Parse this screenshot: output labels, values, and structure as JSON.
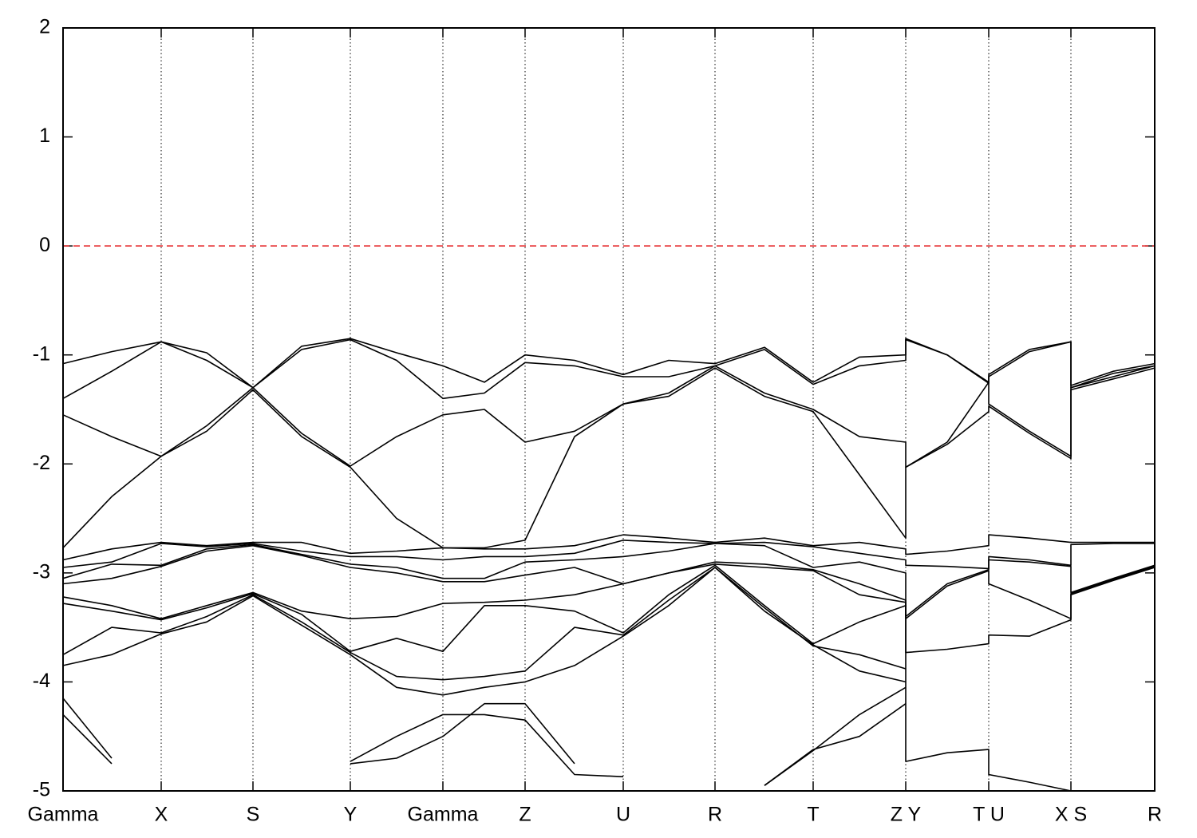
{
  "chart_data": {
    "type": "line",
    "color": "#000000",
    "grid": true,
    "x": [
      0,
      61,
      123,
      180,
      238,
      299,
      360,
      418,
      476,
      528,
      579,
      641,
      702,
      759,
      817,
      879,
      940,
      998,
      1056,
      1056,
      1108,
      1160,
      1160,
      1211,
      1263,
      1263,
      1316,
      1368
    ],
    "xlim": [
      0,
      1368
    ],
    "xticks": [
      {
        "value": 0,
        "label": "Gamma"
      },
      {
        "value": 123,
        "label": "X"
      },
      {
        "value": 238,
        "label": "S"
      },
      {
        "value": 360,
        "label": "Y"
      },
      {
        "value": 476,
        "label": "Gamma"
      },
      {
        "value": 579,
        "label": "Z"
      },
      {
        "value": 702,
        "label": "U"
      },
      {
        "value": 817,
        "label": "R"
      },
      {
        "value": 940,
        "label": "T"
      },
      {
        "value": 1056,
        "label": "Z Y"
      },
      {
        "value": 1160,
        "label": "T U"
      },
      {
        "value": 1263,
        "label": "X S"
      },
      {
        "value": 1368,
        "label": "R"
      }
    ],
    "ylim": [
      -5,
      2
    ],
    "yticks": [
      -5,
      -4,
      -3,
      -2,
      -1,
      0,
      1,
      2
    ],
    "reference_line": {
      "value": 0,
      "color": "#e41a1c",
      "dash": true
    },
    "series": [
      {
        "values": [
          -1.08,
          -0.97,
          -0.88,
          -0.98,
          -1.3,
          -0.92,
          -0.85,
          -0.98,
          -1.1,
          -1.25,
          -1.0,
          -1.05,
          -1.18,
          -1.05,
          -1.08,
          -0.93,
          -1.25,
          -1.02,
          -1.0,
          -0.85,
          -1.0,
          -1.25,
          -1.18,
          -0.95,
          -0.88,
          -1.28,
          -1.15,
          -1.08
        ]
      },
      {
        "values": [
          -1.4,
          -1.15,
          -0.88,
          -1.05,
          -1.3,
          -0.95,
          -0.86,
          -1.05,
          -1.4,
          -1.35,
          -1.07,
          -1.1,
          -1.2,
          -1.2,
          -1.1,
          -0.95,
          -1.27,
          -1.1,
          -1.05,
          -0.86,
          -1.0,
          -1.26,
          -1.2,
          -0.97,
          -0.88,
          -1.3,
          -1.17,
          -1.1
        ]
      },
      {
        "values": [
          -1.55,
          -1.75,
          -1.93,
          -1.65,
          -1.3,
          -1.72,
          -2.02,
          -1.75,
          -1.55,
          -1.5,
          -1.8,
          -1.7,
          -1.45,
          -1.35,
          -1.1,
          -1.35,
          -1.5,
          -1.75,
          -1.8,
          -2.03,
          -1.8,
          -1.25,
          -1.45,
          -1.7,
          -1.93,
          -1.3,
          -1.2,
          -1.1
        ]
      },
      {
        "values": [
          -2.77,
          -2.3,
          -1.93,
          -1.7,
          -1.32,
          -1.75,
          -2.03,
          -2.5,
          -2.77,
          -2.77,
          -2.7,
          -1.75,
          -1.45,
          -1.38,
          -1.12,
          -1.38,
          -1.52,
          -2.1,
          -2.68,
          -2.03,
          -1.82,
          -1.52,
          -1.47,
          -1.72,
          -1.95,
          -1.32,
          -1.22,
          -1.12
        ]
      },
      {
        "values": [
          -2.88,
          -2.78,
          -2.72,
          -2.75,
          -2.72,
          -2.72,
          -2.82,
          -2.8,
          -2.77,
          -2.78,
          -2.78,
          -2.75,
          -2.65,
          -2.68,
          -2.72,
          -2.68,
          -2.75,
          -2.72,
          -2.78,
          -2.83,
          -2.8,
          -2.75,
          -2.65,
          -2.68,
          -2.72,
          -2.72,
          -2.72,
          -2.72
        ]
      },
      {
        "values": [
          -2.95,
          -2.9,
          -2.73,
          -2.76,
          -2.73,
          -2.8,
          -2.85,
          -2.85,
          -2.88,
          -2.85,
          -2.85,
          -2.82,
          -2.7,
          -2.72,
          -2.73,
          -2.72,
          -2.76,
          -2.82,
          -2.88,
          -2.93,
          -2.94,
          -2.96,
          -2.85,
          -2.88,
          -2.93,
          -2.74,
          -2.73,
          -2.73
        ]
      },
      {
        "values": [
          -3.05,
          -2.92,
          -2.93,
          -2.78,
          -2.74,
          -2.83,
          -2.92,
          -2.95,
          -3.05,
          -3.05,
          -2.9,
          -2.88,
          -2.85,
          -2.8,
          -2.73,
          -2.75,
          -2.95,
          -2.9,
          -3.0,
          -3.4,
          -3.1,
          -2.97,
          -2.88,
          -2.9,
          -2.94,
          -3.18,
          -3.05,
          -2.93
        ]
      },
      {
        "values": [
          -3.1,
          -3.05,
          -2.94,
          -2.8,
          -2.75,
          -2.84,
          -2.95,
          -3.0,
          -3.08,
          -3.08,
          -3.02,
          -2.95,
          -3.1,
          -3.0,
          -2.9,
          -2.92,
          -2.97,
          -3.1,
          -3.25,
          -3.42,
          -3.12,
          -2.98,
          -3.1,
          -3.25,
          -3.42,
          -3.19,
          -3.06,
          -2.94
        ]
      },
      {
        "values": [
          -3.22,
          -3.3,
          -3.42,
          -3.3,
          -3.18,
          -3.35,
          -3.42,
          -3.4,
          -3.28,
          -3.27,
          -3.25,
          -3.2,
          -3.1,
          -3.0,
          -2.92,
          -2.95,
          -2.98,
          -3.2,
          -3.27,
          -3.73,
          -3.7,
          -3.65,
          -3.57,
          -3.58,
          -3.43,
          -3.2,
          -3.07,
          -2.95
        ]
      },
      {
        "values": [
          -3.28,
          -3.35,
          -3.43,
          -3.32,
          -3.19,
          -3.38,
          -3.72,
          -3.6,
          -3.72,
          -3.3,
          -3.3,
          -3.35,
          -3.55,
          -3.2,
          -2.93,
          -3.3,
          -3.65,
          -3.45,
          -3.3,
          -4.73,
          -4.65,
          -4.62,
          -4.85,
          -4.92,
          -5.0,
          null,
          null,
          null
        ]
      },
      {
        "values": [
          -3.75,
          -3.5,
          -3.55,
          -3.4,
          -3.2,
          -3.45,
          -3.73,
          -3.95,
          -3.98,
          -3.95,
          -3.9,
          -3.5,
          -3.57,
          -3.25,
          -2.95,
          -3.32,
          -3.67,
          -3.75,
          -3.88,
          null,
          null,
          null,
          null,
          null,
          null,
          null,
          null,
          null
        ]
      },
      {
        "values": [
          -3.85,
          -3.75,
          -3.56,
          -3.45,
          -3.21,
          -3.48,
          -3.75,
          -4.05,
          -4.12,
          -4.05,
          -4.0,
          -3.85,
          -3.58,
          -3.3,
          -2.95,
          -3.35,
          -3.66,
          -3.9,
          -4.0,
          null,
          null,
          null,
          null,
          null,
          null,
          null,
          null,
          null
        ]
      },
      {
        "values": [
          -4.15,
          -4.7,
          null,
          null,
          null,
          null,
          -4.73,
          -4.5,
          -4.3,
          -4.3,
          -4.35,
          -4.85,
          -4.87,
          null,
          null,
          -4.95,
          -4.62,
          -4.5,
          -4.2,
          null,
          null,
          null,
          null,
          null,
          null,
          null,
          null,
          null
        ]
      },
      {
        "values": [
          -4.3,
          -4.75,
          null,
          null,
          null,
          null,
          -4.75,
          -4.7,
          -4.5,
          -4.2,
          -4.2,
          -4.75,
          null,
          null,
          null,
          -4.95,
          -4.63,
          -4.3,
          -4.05,
          null,
          null,
          null,
          null,
          null,
          null,
          null,
          null,
          null
        ]
      }
    ]
  }
}
